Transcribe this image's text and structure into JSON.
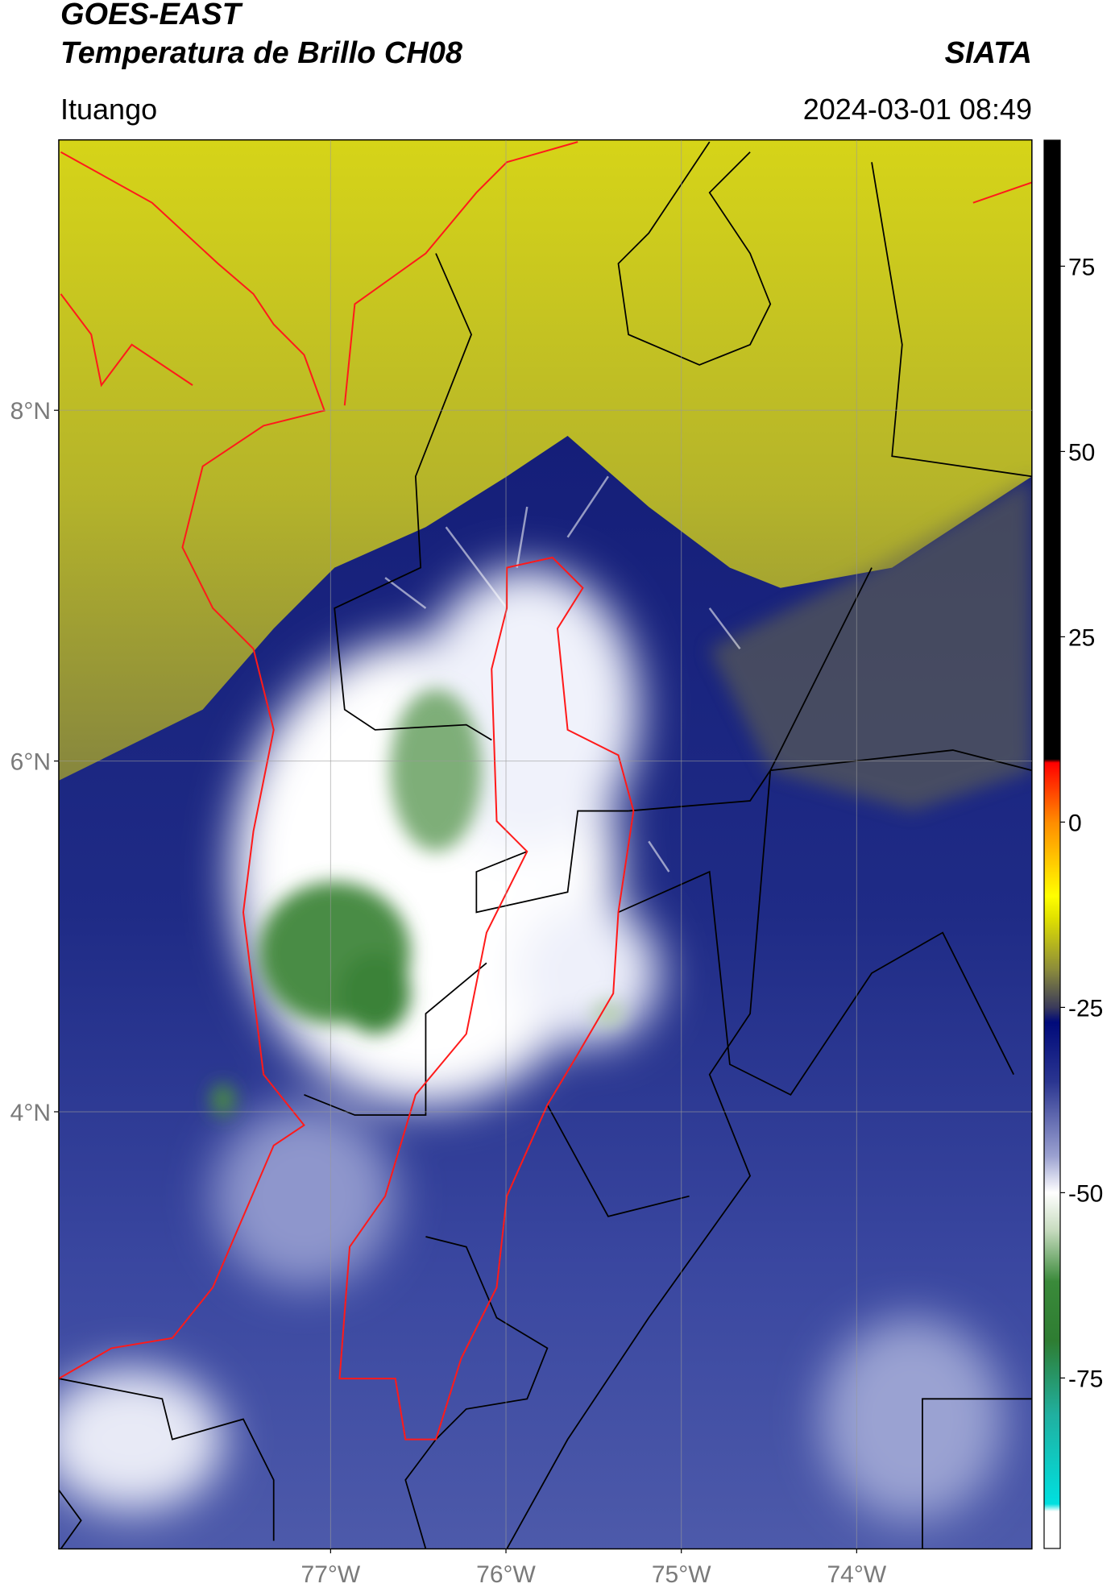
{
  "chart_data": {
    "type": "map",
    "title": "GOES-EAST",
    "subtitle": "Temperatura de Brillo CH08",
    "source": "SIATA",
    "location": "Ituango",
    "datetime": "2024-03-01 08:49",
    "xlim": [
      -78.55,
      -73.0
    ],
    "ylim": [
      1.51,
      9.54
    ],
    "xticks": [
      {
        "value": -77,
        "label": "77°W"
      },
      {
        "value": -76,
        "label": "76°W"
      },
      {
        "value": -75,
        "label": "75°W"
      },
      {
        "value": -74,
        "label": "74°W"
      }
    ],
    "yticks": [
      {
        "value": 4,
        "label": "4°N"
      },
      {
        "value": 6,
        "label": "6°N"
      },
      {
        "value": 8,
        "label": "8°N"
      }
    ],
    "grid": true,
    "colorbar": {
      "lim": [
        -98,
        92
      ],
      "ticks": [
        75,
        50,
        25,
        0,
        -25,
        -50,
        -75
      ],
      "colormap": [
        {
          "value": 92,
          "color": "#000000"
        },
        {
          "value": 8.5,
          "color": "#000000"
        },
        {
          "value": 8,
          "color": "#ff0000"
        },
        {
          "value": 0,
          "color": "#ff8c00"
        },
        {
          "value": -10,
          "color": "#ffff00"
        },
        {
          "value": -13,
          "color": "#e0e000"
        },
        {
          "value": -20,
          "color": "#8a8a3c"
        },
        {
          "value": -25,
          "color": "#3a3a5a"
        },
        {
          "value": -27,
          "color": "#000a7a"
        },
        {
          "value": -35,
          "color": "#2a3590"
        },
        {
          "value": -45,
          "color": "#9aa0d0"
        },
        {
          "value": -50,
          "color": "#ffffff"
        },
        {
          "value": -55,
          "color": "#c8dcc0"
        },
        {
          "value": -62,
          "color": "#3a8a3a"
        },
        {
          "value": -70,
          "color": "#2e7d32"
        },
        {
          "value": -80,
          "color": "#20b0a0"
        },
        {
          "value": -92,
          "color": "#00e0e0"
        },
        {
          "value": -93,
          "color": "#ffffff"
        },
        {
          "value": -98,
          "color": "#ffffff"
        }
      ]
    }
  }
}
